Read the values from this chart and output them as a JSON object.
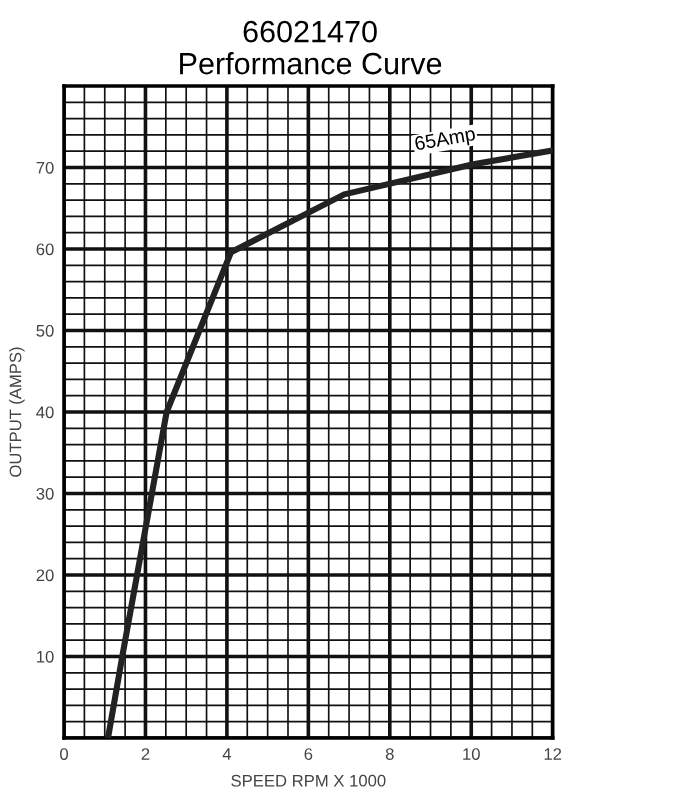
{
  "chart_data": {
    "type": "line",
    "title": "66021470",
    "subtitle": "Performance Curve",
    "xlabel": "SPEED RPM X 1000",
    "ylabel": "OUTPUT (AMPS)",
    "x": [
      1.08,
      1.43,
      2.52,
      4.1,
      6.88,
      10.05,
      12
    ],
    "series": [
      {
        "color": "#222222",
        "values": [
          0,
          10,
          40,
          59.6,
          66.7,
          70.4,
          72.1
        ]
      }
    ],
    "xlim": [
      0,
      12
    ],
    "xticks": [
      0,
      2,
      4,
      6,
      8,
      10,
      12
    ],
    "ylim": [
      0,
      80
    ],
    "yticks": [
      {
        "value": 0,
        "label": null
      },
      10,
      20,
      30,
      40,
      50,
      60,
      70
    ],
    "grid": true,
    "marker": "none",
    "line_style": "solid",
    "annotations": [
      "65Amp"
    ]
  }
}
